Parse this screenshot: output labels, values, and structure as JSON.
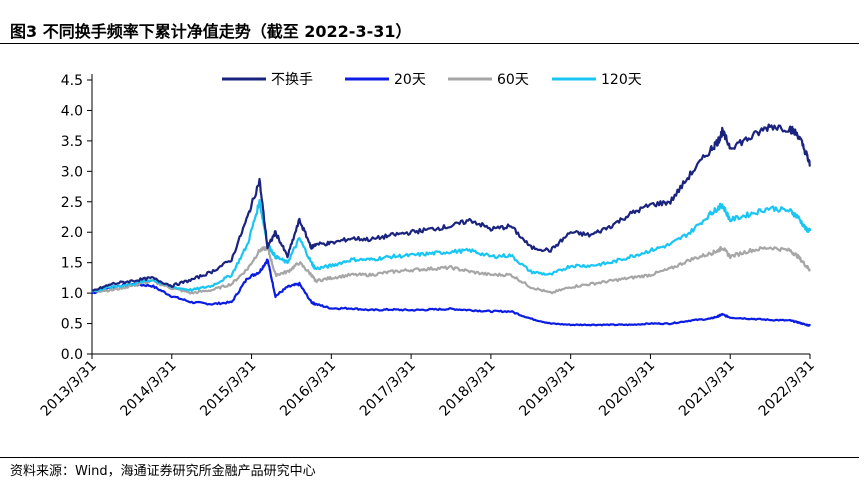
{
  "header": {
    "title": "图3 不同换手频率下累计净值走势（截至 2022-3-31）"
  },
  "footer": {
    "source": "资料来源：Wind，海通证券研究所金融产品研究中心"
  },
  "colors": {
    "no_turnover": "#1a237e",
    "d20": "#0c1de3",
    "d60": "#a6a6a6",
    "d120": "#19c5f3",
    "axis": "#000000"
  },
  "chart_data": {
    "type": "line",
    "title": "不同换手频率下累计净值走势（截至 2022-3-31）",
    "xlabel": "",
    "ylabel": "",
    "ylim": [
      0,
      4.5
    ],
    "yticks": [
      "0.0",
      "0.5",
      "1.0",
      "1.5",
      "2.0",
      "2.5",
      "3.0",
      "3.5",
      "4.0",
      "4.5"
    ],
    "xlim": [
      2013.25,
      2022.25
    ],
    "xticks": [
      "2013/3/31",
      "2014/3/31",
      "2015/3/31",
      "2016/3/31",
      "2017/3/31",
      "2018/3/31",
      "2019/3/31",
      "2020/3/31",
      "2021/3/31",
      "2022/3/31"
    ],
    "legend_position": "top-center",
    "x": [
      2013.25,
      2013.5,
      2013.75,
      2014.0,
      2014.25,
      2014.5,
      2014.75,
      2015.0,
      2015.2,
      2015.35,
      2015.45,
      2015.55,
      2015.7,
      2015.85,
      2016.0,
      2016.05,
      2016.25,
      2016.5,
      2016.75,
      2017.0,
      2017.25,
      2017.5,
      2017.75,
      2018.0,
      2018.25,
      2018.5,
      2018.75,
      2019.0,
      2019.25,
      2019.5,
      2019.75,
      2020.0,
      2020.25,
      2020.5,
      2020.75,
      2021.0,
      2021.1,
      2021.15,
      2021.25,
      2021.5,
      2021.75,
      2022.0,
      2022.1,
      2022.2,
      2022.25
    ],
    "series": [
      {
        "name": "不换手",
        "values": [
          1.03,
          1.15,
          1.2,
          1.25,
          1.12,
          1.22,
          1.35,
          1.55,
          2.25,
          2.85,
          1.75,
          2.0,
          1.6,
          2.2,
          1.75,
          1.8,
          1.82,
          1.9,
          1.88,
          1.95,
          2.0,
          2.05,
          2.1,
          2.2,
          2.05,
          2.1,
          1.75,
          1.7,
          2.0,
          1.95,
          2.1,
          2.3,
          2.45,
          2.5,
          2.95,
          3.35,
          3.5,
          3.65,
          3.4,
          3.55,
          3.75,
          3.7,
          3.6,
          3.3,
          3.1
        ]
      },
      {
        "name": "20天",
        "values": [
          1.0,
          1.1,
          1.15,
          1.12,
          0.95,
          0.85,
          0.82,
          0.85,
          1.25,
          1.35,
          1.55,
          0.95,
          1.1,
          1.15,
          0.85,
          0.82,
          0.75,
          0.75,
          0.72,
          0.73,
          0.72,
          0.73,
          0.74,
          0.72,
          0.7,
          0.7,
          0.58,
          0.5,
          0.48,
          0.48,
          0.48,
          0.48,
          0.5,
          0.5,
          0.55,
          0.58,
          0.62,
          0.65,
          0.6,
          0.58,
          0.56,
          0.55,
          0.52,
          0.48,
          0.47
        ]
      },
      {
        "name": "60天",
        "values": [
          1.03,
          1.05,
          1.12,
          1.2,
          1.08,
          1.0,
          1.05,
          1.15,
          1.4,
          1.7,
          1.75,
          1.3,
          1.35,
          1.5,
          1.3,
          1.2,
          1.25,
          1.3,
          1.3,
          1.35,
          1.38,
          1.4,
          1.42,
          1.35,
          1.3,
          1.3,
          1.1,
          1.0,
          1.1,
          1.15,
          1.2,
          1.25,
          1.3,
          1.4,
          1.55,
          1.65,
          1.7,
          1.75,
          1.6,
          1.7,
          1.75,
          1.7,
          1.6,
          1.45,
          1.38
        ]
      },
      {
        "name": "120天",
        "values": [
          1.03,
          1.1,
          1.15,
          1.22,
          1.1,
          1.05,
          1.12,
          1.3,
          1.8,
          2.5,
          1.8,
          1.6,
          1.5,
          1.9,
          1.5,
          1.4,
          1.45,
          1.55,
          1.55,
          1.6,
          1.62,
          1.65,
          1.68,
          1.7,
          1.6,
          1.62,
          1.35,
          1.3,
          1.45,
          1.45,
          1.5,
          1.6,
          1.7,
          1.8,
          2.0,
          2.3,
          2.4,
          2.45,
          2.2,
          2.3,
          2.4,
          2.35,
          2.25,
          2.05,
          2.02
        ]
      }
    ]
  }
}
